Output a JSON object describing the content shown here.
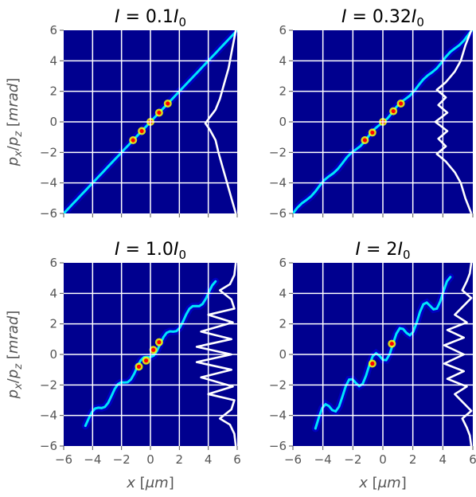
{
  "chart_data": [
    {
      "type": "heatmap",
      "title": {
        "sym": "I",
        "eq": " = 0.1",
        "sym2": "I",
        "sub": "0"
      },
      "xlim": [
        -6,
        6
      ],
      "ylim": [
        -6,
        6
      ],
      "xticks": [
        -6,
        -4,
        -2,
        0,
        2,
        4,
        6
      ],
      "yticks": [
        -6,
        -4,
        -2,
        0,
        2,
        4,
        6
      ],
      "grid": true,
      "xlabel": {
        "var": "x",
        "unit": "μm"
      },
      "ylabel": {
        "var1": "p",
        "sub1": "x",
        "slash": "/",
        "var2": "p",
        "sub2": "z",
        "unit": "mrad"
      },
      "show_xlabel": false,
      "show_ylabel": true,
      "colormap": [
        "#00008f",
        "#0000ff",
        "#00ffff",
        "#ffff00",
        "#ff0000",
        "#800000"
      ],
      "background": "#00008f",
      "distribution": {
        "slope": 1.0,
        "extent": [
          -6,
          6
        ],
        "width": 0.16,
        "zigzag": 0
      },
      "hot_spots": [
        [
          -1.2,
          -1.2
        ],
        [
          -0.6,
          -0.6
        ],
        [
          0.0,
          0.0
        ],
        [
          0.6,
          0.6
        ],
        [
          1.2,
          1.2
        ]
      ],
      "profile": [
        [
          -6,
          5.9
        ],
        [
          -5,
          5.6
        ],
        [
          -4,
          5.3
        ],
        [
          -3,
          5.0
        ],
        [
          -2,
          4.7
        ],
        [
          -1.2,
          4.5
        ],
        [
          -0.5,
          4.1
        ],
        [
          -0.1,
          3.8
        ],
        [
          0.3,
          4.1
        ],
        [
          0.8,
          4.5
        ],
        [
          1.5,
          4.8
        ],
        [
          2.5,
          5.1
        ],
        [
          3.5,
          5.4
        ],
        [
          4.5,
          5.6
        ],
        [
          5.5,
          5.8
        ],
        [
          6,
          5.9
        ]
      ]
    },
    {
      "type": "heatmap",
      "title": {
        "sym": "I",
        "eq": " = 0.32",
        "sym2": "I",
        "sub": "0"
      },
      "xlim": [
        -6,
        6
      ],
      "ylim": [
        -6,
        6
      ],
      "xticks": [
        -6,
        -4,
        -2,
        0,
        2,
        4,
        6
      ],
      "yticks": [
        -6,
        -4,
        -2,
        0,
        2,
        4,
        6
      ],
      "grid": true,
      "xlabel": {
        "var": "x",
        "unit": "μm"
      },
      "ylabel": {
        "var1": "p",
        "sub1": "x",
        "slash": "/",
        "var2": "p",
        "sub2": "z",
        "unit": "mrad"
      },
      "show_xlabel": false,
      "show_ylabel": false,
      "colormap": [
        "#00008f",
        "#0000ff",
        "#00ffff",
        "#ffff00",
        "#ff0000",
        "#800000"
      ],
      "background": "#00008f",
      "distribution": {
        "slope": 1.0,
        "extent": [
          -6,
          6
        ],
        "width": 0.18,
        "zigzag": 0.15
      },
      "hot_spots": [
        [
          -1.2,
          -1.2
        ],
        [
          -0.7,
          -0.7
        ],
        [
          0.0,
          0.0
        ],
        [
          0.7,
          0.7
        ],
        [
          1.2,
          1.2
        ]
      ],
      "profile": [
        [
          -6,
          5.9
        ],
        [
          -5,
          5.5
        ],
        [
          -4,
          5.2
        ],
        [
          -3.3,
          4.8
        ],
        [
          -2.6,
          4.2
        ],
        [
          -2.1,
          3.6
        ],
        [
          -1.6,
          4.2
        ],
        [
          -1.1,
          3.7
        ],
        [
          -0.6,
          4.3
        ],
        [
          0,
          3.5
        ],
        [
          0.6,
          4.3
        ],
        [
          1.1,
          3.7
        ],
        [
          1.6,
          4.2
        ],
        [
          2.1,
          3.6
        ],
        [
          2.6,
          4.2
        ],
        [
          3.3,
          4.8
        ],
        [
          4,
          5.2
        ],
        [
          5,
          5.5
        ],
        [
          6,
          5.9
        ]
      ]
    },
    {
      "type": "heatmap",
      "title": {
        "sym": "I",
        "eq": " = 1.0",
        "sym2": "I",
        "sub": "0"
      },
      "xlim": [
        -6,
        6
      ],
      "ylim": [
        -6,
        6
      ],
      "xticks": [
        -6,
        -4,
        -2,
        0,
        2,
        4,
        6
      ],
      "yticks": [
        -6,
        -4,
        -2,
        0,
        2,
        4,
        6
      ],
      "grid": true,
      "xlabel": {
        "var": "x",
        "unit": "μm"
      },
      "ylabel": {
        "var1": "p",
        "sub1": "x",
        "slash": "/",
        "var2": "p",
        "sub2": "z",
        "unit": "mrad"
      },
      "show_xlabel": true,
      "show_ylabel": true,
      "colormap": [
        "#00008f",
        "#0000ff",
        "#00ffff",
        "#ffff00",
        "#ff0000",
        "#800000"
      ],
      "background": "#00008f",
      "distribution": {
        "slope": 1.0,
        "extent": [
          -4.5,
          4.5
        ],
        "width": 0.2,
        "zigzag": 0.5
      },
      "hot_spots": [
        [
          -0.8,
          -0.8
        ],
        [
          0.6,
          0.8
        ],
        [
          -0.3,
          -0.4
        ],
        [
          0.2,
          0.3
        ]
      ],
      "profile": [
        [
          -6,
          5.9
        ],
        [
          -5.2,
          5.8
        ],
        [
          -4.6,
          5.5
        ],
        [
          -4.2,
          4.8
        ],
        [
          -3.6,
          5.6
        ],
        [
          -3,
          5.8
        ],
        [
          -2.6,
          4.0
        ],
        [
          -2.1,
          5.7
        ],
        [
          -1.5,
          3.5
        ],
        [
          -1.0,
          5.6
        ],
        [
          -0.5,
          3.2
        ],
        [
          0,
          5.6
        ],
        [
          0.5,
          3.2
        ],
        [
          1.0,
          5.6
        ],
        [
          1.5,
          3.5
        ],
        [
          2.1,
          5.7
        ],
        [
          2.6,
          4.0
        ],
        [
          3,
          5.8
        ],
        [
          3.6,
          5.6
        ],
        [
          4.2,
          4.8
        ],
        [
          4.6,
          5.5
        ],
        [
          5.2,
          5.8
        ],
        [
          6,
          5.9
        ]
      ]
    },
    {
      "type": "heatmap",
      "title": {
        "sym": "I",
        "eq": " = 2",
        "sym2": "I",
        "sub": "0"
      },
      "xlim": [
        -6,
        6
      ],
      "ylim": [
        -6,
        6
      ],
      "xticks": [
        -6,
        -4,
        -2,
        0,
        2,
        4,
        6
      ],
      "yticks": [
        -6,
        -4,
        -2,
        0,
        2,
        4,
        6
      ],
      "grid": true,
      "xlabel": {
        "var": "x",
        "unit": "μm"
      },
      "ylabel": {
        "var1": "p",
        "sub1": "x",
        "slash": "/",
        "var2": "p",
        "sub2": "z",
        "unit": "mrad"
      },
      "show_xlabel": true,
      "show_ylabel": false,
      "colormap": [
        "#00008f",
        "#0000ff",
        "#00ffff",
        "#ffff00",
        "#ff0000",
        "#800000"
      ],
      "background": "#00008f",
      "distribution": {
        "slope": 1.0,
        "extent": [
          -4.5,
          4.5
        ],
        "width": 0.15,
        "zigzag": 1.0
      },
      "hot_spots": [
        [
          0.6,
          0.7
        ],
        [
          -0.7,
          -0.6
        ]
      ],
      "profile": [
        [
          -6,
          5.9
        ],
        [
          -5.3,
          5.8
        ],
        [
          -4.8,
          5.6
        ],
        [
          -4.2,
          5.3
        ],
        [
          -3.7,
          5.9
        ],
        [
          -3.2,
          5.4
        ],
        [
          -2.6,
          4.8
        ],
        [
          -2.1,
          5.6
        ],
        [
          -1.6,
          4.3
        ],
        [
          -1.1,
          5.4
        ],
        [
          -0.6,
          4.1
        ],
        [
          0,
          5.4
        ],
        [
          0.6,
          4.1
        ],
        [
          1.1,
          5.4
        ],
        [
          1.6,
          4.3
        ],
        [
          2.1,
          5.6
        ],
        [
          2.6,
          4.8
        ],
        [
          3.2,
          5.4
        ],
        [
          3.7,
          5.9
        ],
        [
          4.2,
          5.3
        ],
        [
          4.8,
          5.6
        ],
        [
          5.3,
          5.8
        ],
        [
          6,
          5.9
        ]
      ]
    }
  ]
}
